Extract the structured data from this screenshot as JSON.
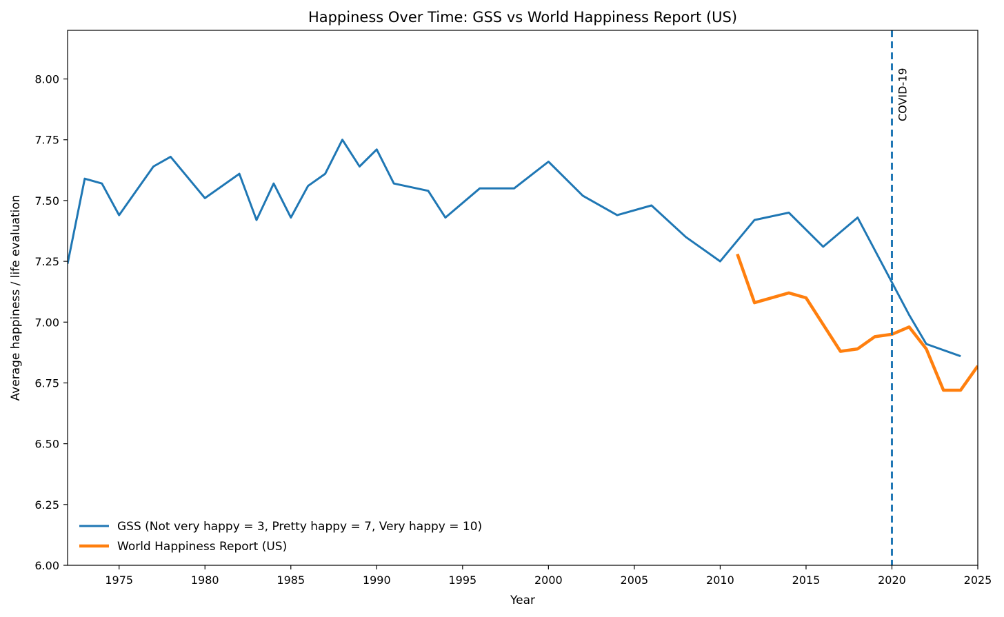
{
  "chart_data": {
    "type": "line",
    "title": "Happiness Over Time: GSS vs World Happiness Report (US)",
    "xlabel": "Year",
    "ylabel": "Average happiness / life evaluation",
    "xlim": [
      1972,
      2025
    ],
    "ylim": [
      6.0,
      8.2
    ],
    "xticks": [
      1975,
      1980,
      1985,
      1990,
      1995,
      2000,
      2005,
      2010,
      2015,
      2020,
      2025
    ],
    "yticks": [
      "6.00",
      "6.25",
      "6.50",
      "6.75",
      "7.00",
      "7.25",
      "7.50",
      "7.75",
      "8.00"
    ],
    "legend_position": "bottom-left",
    "series": [
      {
        "name": "GSS (Not very happy = 3, Pretty happy = 7, Very happy = 10)",
        "color": "#1f77b4",
        "x": [
          1972,
          1973,
          1974,
          1975,
          1976,
          1977,
          1978,
          1980,
          1982,
          1983,
          1984,
          1985,
          1986,
          1987,
          1988,
          1989,
          1990,
          1991,
          1993,
          1994,
          1996,
          1998,
          2000,
          2002,
          2004,
          2006,
          2008,
          2010,
          2012,
          2014,
          2016,
          2018,
          2021,
          2022,
          2024
        ],
        "y": [
          7.24,
          7.59,
          7.57,
          7.44,
          7.54,
          7.64,
          7.68,
          7.51,
          7.61,
          7.42,
          7.57,
          7.43,
          7.56,
          7.61,
          7.75,
          7.64,
          7.71,
          7.57,
          7.54,
          7.43,
          7.55,
          7.55,
          7.66,
          7.52,
          7.44,
          7.48,
          7.35,
          7.25,
          7.42,
          7.45,
          7.31,
          7.43,
          7.03,
          6.91,
          6.86
        ]
      },
      {
        "name": "World Happiness Report (US)",
        "color": "#ff7f0e",
        "x": [
          2011,
          2012,
          2014,
          2015,
          2016,
          2017,
          2018,
          2019,
          2020,
          2021,
          2022,
          2023,
          2024,
          2025
        ],
        "y": [
          7.28,
          7.08,
          7.12,
          7.1,
          6.99,
          6.88,
          6.89,
          6.94,
          6.95,
          6.98,
          6.89,
          6.72,
          6.72,
          6.82
        ]
      }
    ],
    "annotations": [
      {
        "type": "vline",
        "x": 2020,
        "label": "COVID-19",
        "color": "#1f77b4",
        "style": "dashed"
      }
    ]
  }
}
